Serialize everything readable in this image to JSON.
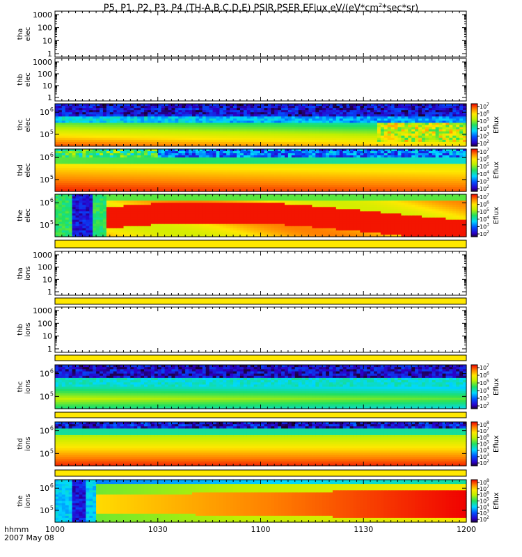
{
  "chart_data": {
    "type": "heatmap",
    "title_parts": {
      "main": "P5, P1, P2, P3, P4 (TH-A,B,C,D,E) PSIR,PSER EFlux eV/(eV*cm",
      "sup": "2",
      "tail": "*sec*sr)"
    },
    "x_axis": {
      "label_line1": "hhmm",
      "label_line2": "2007 May 08",
      "tick_labels": [
        "1000",
        "1030",
        "1100",
        "1130",
        "1200"
      ],
      "tick_values_min": [
        0,
        30,
        60,
        90,
        120
      ]
    },
    "colorbar_label": "Eflux",
    "panels": [
      {
        "id": "tha-elec",
        "ylabel": [
          "tha",
          "elec"
        ],
        "kind": "empty",
        "yticks": [
          "1000",
          "100",
          "10",
          "1"
        ]
      },
      {
        "id": "thb-elec",
        "ylabel": [
          "thb",
          "elec"
        ],
        "kind": "empty",
        "yticks": [
          "1000",
          "100",
          "10",
          "1"
        ]
      },
      {
        "id": "thc-elec",
        "ylabel": [
          "thc",
          "elec"
        ],
        "kind": "spectro",
        "ytick_exp": [
          "6",
          "5"
        ],
        "cbar_exp": [
          "7",
          "6",
          "5",
          "4",
          "3",
          "2"
        ],
        "pattern": "thc-elec"
      },
      {
        "id": "thd-elec",
        "ylabel": [
          "thd",
          "elec"
        ],
        "kind": "spectro",
        "ytick_exp": [
          "6",
          "5"
        ],
        "cbar_exp": [
          "7",
          "6",
          "5",
          "4",
          "3",
          "2"
        ],
        "pattern": "thd-elec"
      },
      {
        "id": "the-elec",
        "ylabel": [
          "the",
          "elec"
        ],
        "kind": "spectro",
        "ytick_exp": [
          "6",
          "5"
        ],
        "cbar_exp": [
          "7",
          "6",
          "5",
          "4",
          "3",
          "2"
        ],
        "pattern": "the-elec"
      },
      {
        "id": "strip-1",
        "kind": "strip"
      },
      {
        "id": "tha-ions",
        "ylabel": [
          "tha",
          "ions"
        ],
        "kind": "empty",
        "yticks": [
          "1000",
          "100",
          "10",
          "1"
        ]
      },
      {
        "id": "strip-2",
        "kind": "strip"
      },
      {
        "id": "thb-ions",
        "ylabel": [
          "thb",
          "ions"
        ],
        "kind": "empty",
        "yticks": [
          "1000",
          "100",
          "10",
          "1"
        ]
      },
      {
        "id": "strip-3",
        "kind": "strip"
      },
      {
        "id": "thc-ions",
        "ylabel": [
          "thc",
          "ions"
        ],
        "kind": "spectro",
        "ytick_exp": [
          "6",
          "5"
        ],
        "cbar_exp": [
          "7",
          "6",
          "5",
          "4",
          "3",
          "2"
        ],
        "pattern": "thc-ions"
      },
      {
        "id": "strip-4",
        "kind": "strip"
      },
      {
        "id": "thd-ions",
        "ylabel": [
          "thd",
          "ions"
        ],
        "kind": "spectro",
        "ytick_exp": [
          "6",
          "5"
        ],
        "cbar_exp": [
          "8",
          "7",
          "6",
          "5",
          "4",
          "3",
          "2"
        ],
        "pattern": "thd-ions"
      },
      {
        "id": "strip-5",
        "kind": "strip"
      },
      {
        "id": "the-ions",
        "ylabel": [
          "the",
          "ions"
        ],
        "kind": "spectro",
        "ytick_exp": [
          "6",
          "5"
        ],
        "cbar_exp": [
          "8",
          "7",
          "6",
          "5",
          "4",
          "3",
          "2"
        ],
        "pattern": "the-ions"
      }
    ]
  }
}
